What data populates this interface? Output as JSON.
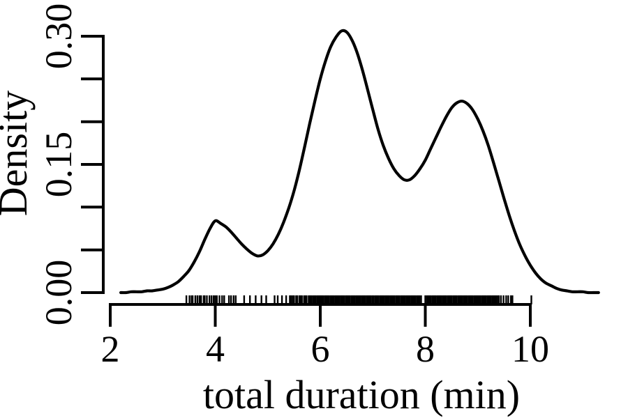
{
  "chart_data": {
    "type": "line",
    "title": "",
    "xlabel": "total duration (min)",
    "ylabel": "Density",
    "grid": false,
    "legend": false,
    "colors": {
      "ink": "#000000",
      "background": "#ffffff"
    },
    "x_axis": {
      "ticks": [
        2,
        4,
        6,
        8,
        10
      ],
      "tick_labels": [
        "2",
        "4",
        "6",
        "8",
        "10"
      ],
      "axis_span": [
        2,
        10
      ]
    },
    "y_axis": {
      "range": [
        0,
        0.3
      ],
      "minor_ticks": [
        0,
        0.05,
        0.1,
        0.15,
        0.2,
        0.25,
        0.3
      ],
      "labeled_ticks": [
        {
          "value": 0.0,
          "label": "0.00"
        },
        {
          "value": 0.15,
          "label": "0.15"
        },
        {
          "value": 0.3,
          "label": "0.30"
        }
      ]
    },
    "series": [
      {
        "name": "kernel-density-estimate",
        "x": [
          2.2,
          2.3,
          2.4,
          2.5,
          2.6,
          2.7,
          2.8,
          2.9,
          3.0,
          3.1,
          3.2,
          3.3,
          3.4,
          3.5,
          3.6,
          3.7,
          3.8,
          3.9,
          4.0,
          4.1,
          4.2,
          4.3,
          4.4,
          4.5,
          4.6,
          4.7,
          4.8,
          4.9,
          5.0,
          5.1,
          5.2,
          5.3,
          5.4,
          5.5,
          5.6,
          5.7,
          5.8,
          5.9,
          6.0,
          6.1,
          6.2,
          6.3,
          6.4,
          6.5,
          6.6,
          6.7,
          6.8,
          6.9,
          7.0,
          7.1,
          7.2,
          7.3,
          7.4,
          7.5,
          7.6,
          7.7,
          7.8,
          7.9,
          8.0,
          8.1,
          8.2,
          8.3,
          8.4,
          8.5,
          8.6,
          8.7,
          8.8,
          8.9,
          9.0,
          9.1,
          9.2,
          9.3,
          9.4,
          9.5,
          9.6,
          9.7,
          9.8,
          9.9,
          10.0,
          10.1,
          10.2,
          10.3,
          10.4,
          10.5,
          10.6,
          10.7,
          10.8,
          10.9,
          11.0,
          11.1,
          11.2,
          11.3
        ],
        "y": [
          0.0,
          0.0,
          0.001,
          0.001,
          0.001,
          0.002,
          0.002,
          0.003,
          0.004,
          0.006,
          0.009,
          0.013,
          0.019,
          0.026,
          0.036,
          0.048,
          0.062,
          0.075,
          0.084,
          0.081,
          0.077,
          0.071,
          0.064,
          0.057,
          0.051,
          0.046,
          0.043,
          0.044,
          0.049,
          0.057,
          0.068,
          0.082,
          0.099,
          0.119,
          0.143,
          0.17,
          0.198,
          0.225,
          0.25,
          0.271,
          0.288,
          0.299,
          0.306,
          0.305,
          0.296,
          0.281,
          0.261,
          0.238,
          0.214,
          0.191,
          0.172,
          0.157,
          0.145,
          0.137,
          0.132,
          0.132,
          0.137,
          0.145,
          0.155,
          0.168,
          0.181,
          0.194,
          0.206,
          0.216,
          0.222,
          0.224,
          0.221,
          0.214,
          0.203,
          0.189,
          0.172,
          0.152,
          0.131,
          0.11,
          0.09,
          0.072,
          0.056,
          0.043,
          0.032,
          0.023,
          0.016,
          0.011,
          0.008,
          0.005,
          0.003,
          0.002,
          0.001,
          0.001,
          0.001,
          0.0,
          0.0,
          0.0
        ]
      }
    ],
    "rug": {
      "description": "observation tick marks along x-axis",
      "values": [
        3.45,
        3.51,
        3.55,
        3.57,
        3.62,
        3.66,
        3.7,
        3.73,
        3.78,
        3.8,
        3.84,
        3.89,
        3.93,
        3.97,
        4.0,
        4.03,
        4.08,
        4.13,
        4.17,
        4.26,
        4.3,
        4.35,
        4.39,
        4.55,
        4.66,
        4.77,
        4.88,
        4.97,
        5.13,
        5.19,
        5.27,
        5.35,
        5.42,
        5.45,
        5.48,
        5.5,
        5.54,
        5.56,
        5.6,
        5.63,
        5.65,
        5.69,
        5.72,
        5.74,
        5.78,
        5.81,
        5.83,
        5.86,
        5.89,
        5.91,
        5.94,
        5.96,
        5.99,
        6.01,
        6.04,
        6.06,
        6.09,
        6.11,
        6.14,
        6.16,
        6.19,
        6.21,
        6.24,
        6.26,
        6.29,
        6.31,
        6.34,
        6.36,
        6.39,
        6.41,
        6.44,
        6.46,
        6.49,
        6.51,
        6.54,
        6.56,
        6.59,
        6.61,
        6.64,
        6.66,
        6.69,
        6.71,
        6.74,
        6.76,
        6.79,
        6.81,
        6.84,
        6.86,
        6.89,
        6.91,
        6.94,
        6.96,
        6.99,
        7.01,
        7.04,
        7.06,
        7.09,
        7.11,
        7.14,
        7.16,
        7.19,
        7.21,
        7.24,
        7.26,
        7.29,
        7.31,
        7.34,
        7.36,
        7.39,
        7.41,
        7.44,
        7.46,
        7.49,
        7.51,
        7.54,
        7.56,
        7.59,
        7.61,
        7.64,
        7.66,
        7.69,
        7.71,
        7.74,
        7.76,
        7.79,
        7.81,
        7.84,
        7.86,
        7.89,
        7.92,
        8.0,
        8.03,
        8.05,
        8.08,
        8.1,
        8.13,
        8.15,
        8.18,
        8.2,
        8.23,
        8.25,
        8.28,
        8.3,
        8.33,
        8.35,
        8.38,
        8.4,
        8.43,
        8.45,
        8.48,
        8.5,
        8.53,
        8.55,
        8.58,
        8.6,
        8.63,
        8.65,
        8.68,
        8.7,
        8.73,
        8.75,
        8.78,
        8.8,
        8.83,
        8.85,
        8.88,
        8.9,
        8.93,
        8.95,
        8.98,
        9.0,
        9.03,
        9.05,
        9.08,
        9.1,
        9.13,
        9.15,
        9.18,
        9.2,
        9.23,
        9.25,
        9.28,
        9.3,
        9.33,
        9.35,
        9.38,
        9.4,
        9.44,
        9.49,
        9.54,
        9.58,
        9.63,
        9.66,
        10.02
      ]
    }
  }
}
